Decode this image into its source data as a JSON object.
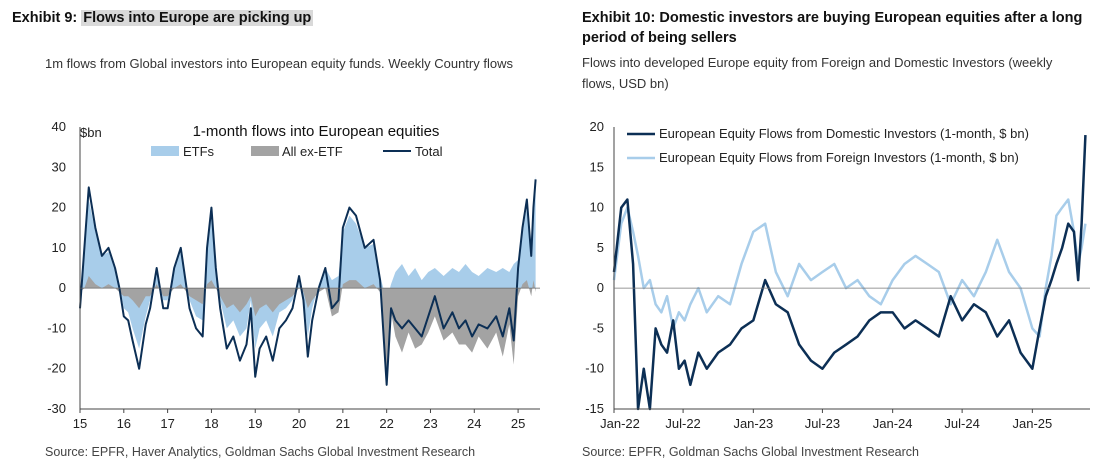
{
  "left": {
    "exhibit_label": "Exhibit 9:",
    "exhibit_title": "Flows into Europe are picking up",
    "subtitle": "1m flows from Global investors into European equity funds. Weekly Country flows",
    "source": "Source: EPFR, Haver Analytics, Goldman Sachs Global Investment Research"
  },
  "right": {
    "exhibit_label": "Exhibit 10:",
    "exhibit_title_line1": "Domestic investors are buying European equities after a long",
    "exhibit_title_line2": "period of being sellers",
    "subtitle_line1": "Flows into developed Europe equity from Foreign and Domestic Investors (weekly",
    "subtitle_line2": "flows, USD bn)",
    "source": "Source: EPFR, Goldman Sachs Global Investment Research"
  },
  "colors": {
    "navy": "#0c2f55",
    "light_blue": "#a8cdea",
    "grey": "#a3a3a3"
  },
  "chart_data": [
    {
      "type": "area",
      "title": "1-month flows into European equities",
      "ylabel": "$bn",
      "ylim": [
        -30,
        40
      ],
      "yticks": [
        "40",
        "30",
        "20",
        "10",
        "0",
        "-10",
        "-20",
        "-30"
      ],
      "xlim": [
        2015,
        2025.5
      ],
      "xtick_labels": [
        "15",
        "16",
        "17",
        "18",
        "19",
        "20",
        "21",
        "22",
        "23",
        "24",
        "25"
      ],
      "legend": [
        "ETFs",
        "All ex-ETF",
        "Total"
      ],
      "legend_position": "top",
      "series": [
        {
          "name": "Total",
          "x": [
            2015.0,
            2015.1,
            2015.2,
            2015.35,
            2015.5,
            2015.65,
            2015.8,
            2015.9,
            2016.0,
            2016.1,
            2016.2,
            2016.35,
            2016.5,
            2016.6,
            2016.75,
            2016.9,
            2017.0,
            2017.15,
            2017.3,
            2017.5,
            2017.65,
            2017.8,
            2017.9,
            2018.0,
            2018.1,
            2018.2,
            2018.35,
            2018.5,
            2018.65,
            2018.8,
            2018.9,
            2019.0,
            2019.1,
            2019.25,
            2019.4,
            2019.55,
            2019.7,
            2019.85,
            2020.0,
            2020.1,
            2020.2,
            2020.3,
            2020.45,
            2020.6,
            2020.75,
            2020.9,
            2021.0,
            2021.15,
            2021.3,
            2021.5,
            2021.7,
            2021.85,
            2022.0,
            2022.1,
            2022.2,
            2022.35,
            2022.5,
            2022.65,
            2022.8,
            2022.95,
            2023.1,
            2023.3,
            2023.5,
            2023.65,
            2023.8,
            2023.95,
            2024.1,
            2024.3,
            2024.5,
            2024.65,
            2024.8,
            2024.9,
            2025.0,
            2025.1,
            2025.2,
            2025.3,
            2025.35,
            2025.4
          ],
          "values": [
            -5,
            10,
            25,
            15,
            8,
            10,
            5,
            0,
            -7,
            -8,
            -13,
            -20,
            -9,
            -5,
            5,
            -5,
            -5,
            5,
            10,
            -5,
            -10,
            -12,
            10,
            20,
            5,
            -5,
            -15,
            -12,
            -18,
            -14,
            -5,
            -22,
            -15,
            -12,
            -18,
            -10,
            -8,
            -5,
            3,
            -3,
            -17,
            -8,
            0,
            5,
            -5,
            -3,
            15,
            20,
            18,
            10,
            12,
            2,
            -24,
            -5,
            -8,
            -10,
            -8,
            -10,
            -12,
            -7,
            -2,
            -10,
            -6,
            -10,
            -8,
            -12,
            -9,
            -10,
            -7,
            -12,
            -5,
            -13,
            5,
            15,
            22,
            8,
            20,
            27
          ]
        },
        {
          "name": "ETFs",
          "x": [
            2015.0,
            2015.1,
            2015.2,
            2015.35,
            2015.5,
            2015.65,
            2015.8,
            2015.9,
            2016.0,
            2016.1,
            2016.2,
            2016.35,
            2016.5,
            2016.6,
            2016.75,
            2016.9,
            2017.0,
            2017.15,
            2017.3,
            2017.5,
            2017.65,
            2017.8,
            2017.9,
            2018.0,
            2018.1,
            2018.2,
            2018.35,
            2018.5,
            2018.65,
            2018.8,
            2018.9,
            2019.0,
            2019.1,
            2019.25,
            2019.4,
            2019.55,
            2019.7,
            2019.85,
            2020.0,
            2020.1,
            2020.2,
            2020.3,
            2020.45,
            2020.6,
            2020.75,
            2020.9,
            2021.0,
            2021.15,
            2021.3,
            2021.5,
            2021.7,
            2021.85,
            2022.0,
            2022.1,
            2022.2,
            2022.35,
            2022.5,
            2022.65,
            2022.8,
            2022.95,
            2023.1,
            2023.3,
            2023.5,
            2023.65,
            2023.8,
            2023.95,
            2024.1,
            2024.3,
            2024.5,
            2024.65,
            2024.8,
            2024.9,
            2025.0,
            2025.1,
            2025.2,
            2025.3,
            2025.35,
            2025.4
          ],
          "values": [
            -4,
            10,
            22,
            14,
            8,
            9,
            5,
            1,
            -5,
            -6,
            -10,
            -15,
            -7,
            -3,
            4,
            -3,
            -3,
            5,
            9,
            -3,
            -7,
            -8,
            9,
            18,
            5,
            -3,
            -10,
            -8,
            -12,
            -10,
            -3,
            -15,
            -10,
            -8,
            -12,
            -6,
            -5,
            -3,
            3,
            -2,
            -12,
            -5,
            1,
            5,
            2,
            3,
            14,
            18,
            16,
            10,
            11,
            3,
            -3,
            1,
            4,
            6,
            3,
            5,
            2,
            4,
            5,
            3,
            5,
            4,
            6,
            4,
            3,
            5,
            4,
            5,
            4,
            6,
            7,
            14,
            20,
            10,
            18,
            28
          ]
        },
        {
          "name": "All ex-ETF",
          "x": [
            2015.0,
            2015.1,
            2015.2,
            2015.35,
            2015.5,
            2015.65,
            2015.8,
            2015.9,
            2016.0,
            2016.1,
            2016.2,
            2016.35,
            2016.5,
            2016.6,
            2016.75,
            2016.9,
            2017.0,
            2017.15,
            2017.3,
            2017.5,
            2017.65,
            2017.8,
            2017.9,
            2018.0,
            2018.1,
            2018.2,
            2018.35,
            2018.5,
            2018.65,
            2018.8,
            2018.9,
            2019.0,
            2019.1,
            2019.25,
            2019.4,
            2019.55,
            2019.7,
            2019.85,
            2020.0,
            2020.1,
            2020.2,
            2020.3,
            2020.45,
            2020.6,
            2020.75,
            2020.9,
            2021.0,
            2021.15,
            2021.3,
            2021.5,
            2021.7,
            2021.85,
            2022.0,
            2022.1,
            2022.2,
            2022.35,
            2022.5,
            2022.65,
            2022.8,
            2022.95,
            2023.1,
            2023.3,
            2023.5,
            2023.65,
            2023.8,
            2023.95,
            2024.1,
            2024.3,
            2024.5,
            2024.65,
            2024.8,
            2024.9,
            2025.0,
            2025.1,
            2025.2,
            2025.3,
            2025.35,
            2025.4
          ],
          "values": [
            -1,
            0,
            3,
            1,
            0,
            1,
            0,
            -1,
            -2,
            -2,
            -3,
            -5,
            -2,
            -2,
            1,
            -2,
            -2,
            0,
            1,
            -2,
            -3,
            -4,
            1,
            2,
            0,
            -2,
            -5,
            -4,
            -6,
            -4,
            -2,
            -7,
            -5,
            -4,
            -6,
            -4,
            -3,
            -2,
            0,
            -1,
            -5,
            -3,
            -1,
            0,
            -7,
            -6,
            1,
            2,
            2,
            0,
            1,
            -1,
            -21,
            -6,
            -12,
            -16,
            -11,
            -15,
            -14,
            -11,
            -7,
            -13,
            -11,
            -14,
            -14,
            -16,
            -12,
            -15,
            -11,
            -17,
            -9,
            -19,
            -2,
            1,
            2,
            -2,
            2,
            -1
          ]
        }
      ]
    },
    {
      "type": "line",
      "title": "",
      "ylim": [
        -15,
        20
      ],
      "yticks": [
        "20",
        "15",
        "10",
        "5",
        "0",
        "-5",
        "-10",
        "-15"
      ],
      "xlim": [
        "2022-01-01",
        "2025-06-01"
      ],
      "xtick_labels": [
        "Jan-22",
        "Jul-22",
        "Jan-23",
        "Jul-23",
        "Jan-24",
        "Jul-24",
        "Jan-25"
      ],
      "legend_position": "top-left",
      "series": [
        {
          "name": "European Equity Flows from Domestic Investors (1-month, $ bn)",
          "x": [
            "2022-01-01",
            "2022-01-20",
            "2022-02-05",
            "2022-02-20",
            "2022-03-05",
            "2022-03-20",
            "2022-04-05",
            "2022-04-20",
            "2022-05-05",
            "2022-05-20",
            "2022-06-05",
            "2022-06-20",
            "2022-07-05",
            "2022-07-20",
            "2022-08-10",
            "2022-09-01",
            "2022-10-01",
            "2022-11-01",
            "2022-12-01",
            "2023-01-01",
            "2023-02-01",
            "2023-03-01",
            "2023-04-01",
            "2023-05-01",
            "2023-06-01",
            "2023-07-01",
            "2023-08-01",
            "2023-09-01",
            "2023-10-01",
            "2023-11-01",
            "2023-12-01",
            "2024-01-01",
            "2024-02-01",
            "2024-03-01",
            "2024-04-01",
            "2024-05-01",
            "2024-06-01",
            "2024-07-01",
            "2024-08-01",
            "2024-09-01",
            "2024-10-01",
            "2024-11-01",
            "2024-12-01",
            "2025-01-01",
            "2025-01-20",
            "2025-02-05",
            "2025-02-20",
            "2025-03-05",
            "2025-03-20",
            "2025-04-05",
            "2025-04-20",
            "2025-05-01",
            "2025-05-10",
            "2025-05-20"
          ],
          "values": [
            2,
            10,
            11,
            3,
            -15,
            -10,
            -15,
            -5,
            -7,
            -8,
            -4,
            -10,
            -9,
            -12,
            -8,
            -10,
            -8,
            -7,
            -5,
            -4,
            1,
            -2,
            -3,
            -7,
            -9,
            -10,
            -8,
            -7,
            -6,
            -4,
            -3,
            -3,
            -5,
            -4,
            -5,
            -6,
            -1,
            -4,
            -2,
            -3,
            -6,
            -4,
            -8,
            -10,
            -5,
            -1,
            1,
            3,
            5,
            8,
            7,
            1,
            8,
            19
          ]
        },
        {
          "name": "European Equity Flows from Foreign Investors (1-month, $ bn)",
          "x": [
            "2022-01-01",
            "2022-01-20",
            "2022-02-05",
            "2022-02-20",
            "2022-03-05",
            "2022-03-20",
            "2022-04-05",
            "2022-04-20",
            "2022-05-05",
            "2022-05-20",
            "2022-06-05",
            "2022-06-20",
            "2022-07-05",
            "2022-07-20",
            "2022-08-10",
            "2022-09-01",
            "2022-10-01",
            "2022-11-01",
            "2022-12-01",
            "2023-01-01",
            "2023-02-01",
            "2023-03-01",
            "2023-04-01",
            "2023-05-01",
            "2023-06-01",
            "2023-07-01",
            "2023-08-01",
            "2023-09-01",
            "2023-10-01",
            "2023-11-01",
            "2023-12-01",
            "2024-01-01",
            "2024-02-01",
            "2024-03-01",
            "2024-04-01",
            "2024-05-01",
            "2024-06-01",
            "2024-07-01",
            "2024-08-01",
            "2024-09-01",
            "2024-10-01",
            "2024-11-01",
            "2024-12-01",
            "2025-01-01",
            "2025-01-20",
            "2025-02-05",
            "2025-02-20",
            "2025-03-05",
            "2025-03-20",
            "2025-04-05",
            "2025-04-20",
            "2025-05-01",
            "2025-05-10",
            "2025-05-20"
          ],
          "values": [
            1,
            8,
            10,
            7,
            4,
            0,
            1,
            -2,
            -3,
            -1,
            -5,
            -3,
            -4,
            -2,
            0,
            -3,
            -1,
            -2,
            3,
            7,
            8,
            2,
            -1,
            3,
            1,
            2,
            3,
            0,
            1,
            -1,
            -2,
            1,
            3,
            4,
            3,
            2,
            -2,
            1,
            -1,
            2,
            6,
            2,
            0,
            -5,
            -6,
            0,
            4,
            9,
            10,
            11,
            7,
            3,
            5,
            8
          ]
        }
      ]
    }
  ]
}
